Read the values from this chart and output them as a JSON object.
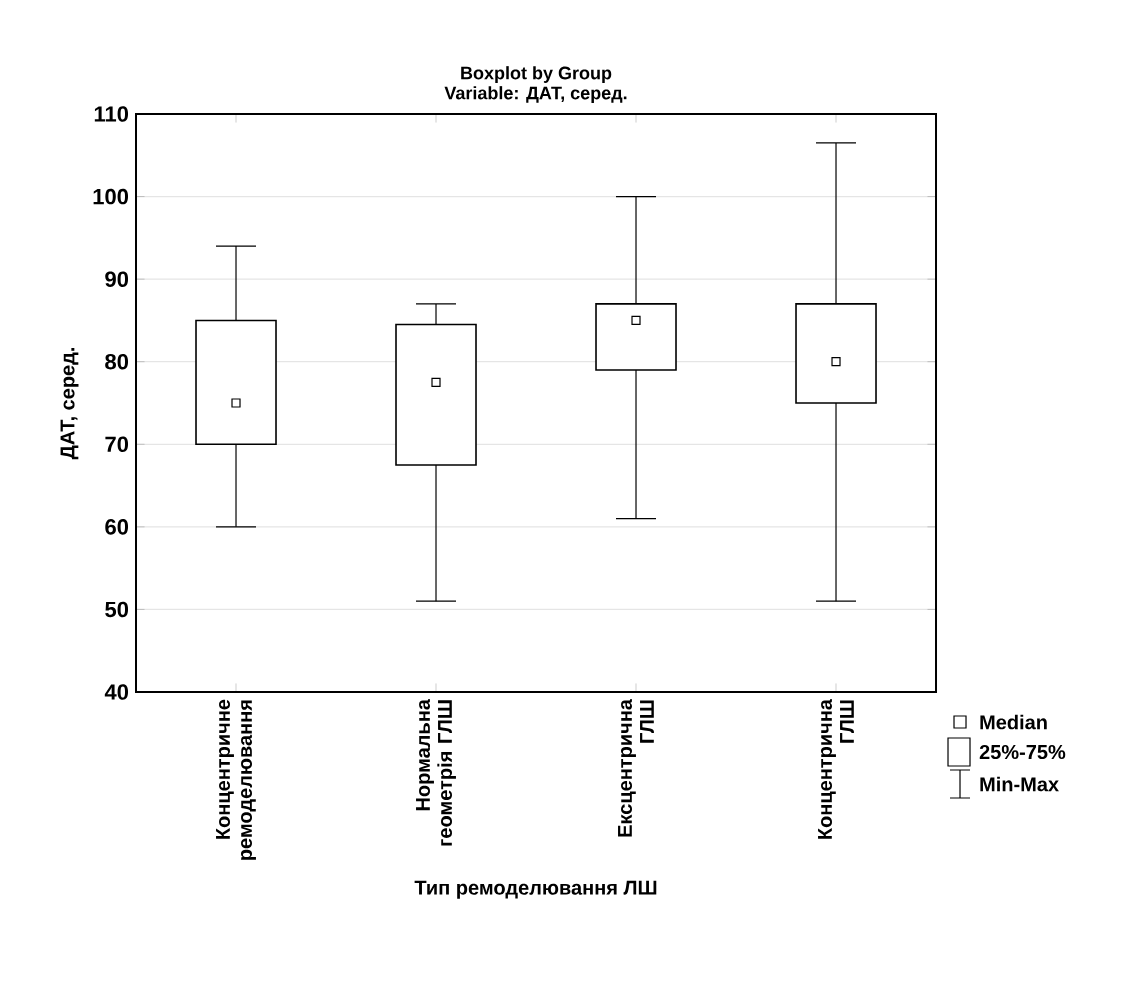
{
  "chart_data": {
    "type": "box",
    "title": "Boxplot by Group",
    "subtitle": "Variable: ДАТ, серед.",
    "xlabel": "Тип ремоделювання ЛШ",
    "ylabel": "ДАТ, серед.",
    "categories": [
      "Концентричне ремоделювання",
      "Нормальна геометрія ГЛШ",
      "Ексцентрична ГЛШ",
      "Концентрична ГЛШ"
    ],
    "boxes": [
      {
        "low": 60,
        "q1": 70,
        "median": 75,
        "q3": 85,
        "high": 94
      },
      {
        "low": 51,
        "q1": 67.5,
        "median": 77.5,
        "q3": 84.5,
        "high": 87
      },
      {
        "low": 61,
        "q1": 79,
        "median": 85,
        "q3": 87,
        "high": 100
      },
      {
        "low": 51,
        "q1": 75,
        "median": 80,
        "q3": 87,
        "high": 106.5
      }
    ],
    "color": "#000000",
    "ylim": [
      40,
      110
    ],
    "yticks": [
      40,
      50,
      60,
      70,
      80,
      90,
      100,
      110
    ],
    "grid": "y",
    "marker": "square",
    "annotations": [
      "Median",
      "25%-75%",
      "Min-Max"
    ]
  }
}
